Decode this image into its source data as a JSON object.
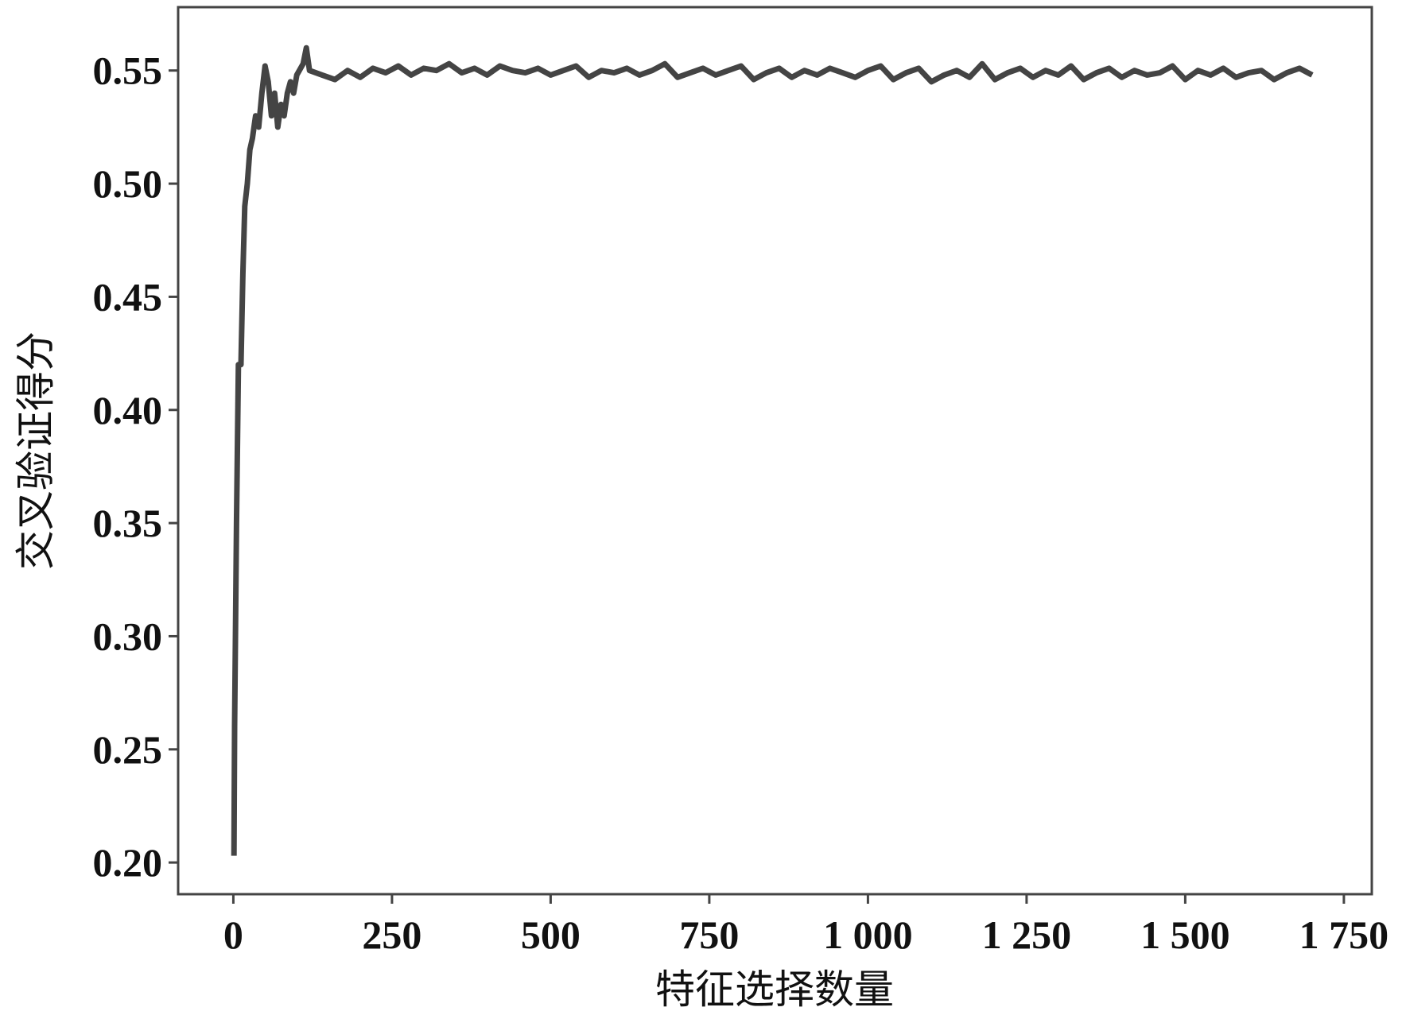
{
  "chart_data": {
    "type": "line",
    "x_label": "特征选择数量",
    "y_label": "交叉验证得分",
    "xlim": [
      -87,
      1794
    ],
    "ylim": [
      0.186,
      0.578
    ],
    "xticks": [
      0,
      250,
      500,
      750,
      {
        "value": 1000,
        "label": "1 000"
      },
      {
        "value": 1250,
        "label": "1 250"
      },
      {
        "value": 1500,
        "label": "1 500"
      },
      {
        "value": 1750,
        "label": "1 750"
      }
    ],
    "yticks": [
      {
        "value": 0.2,
        "label": "0.20"
      },
      0.25,
      {
        "value": 0.3,
        "label": "0.30"
      },
      0.35,
      {
        "value": 0.4,
        "label": "0.40"
      },
      0.45,
      {
        "value": 0.5,
        "label": "0.50"
      },
      0.55
    ],
    "grid": false,
    "series": [
      {
        "color": "#444444",
        "x": [
          1,
          2,
          5,
          8,
          12,
          15,
          18,
          22,
          26,
          30,
          35,
          40,
          45,
          50,
          55,
          60,
          65,
          70,
          75,
          80,
          85,
          90,
          95,
          100,
          110,
          115,
          120,
          130,
          140,
          160,
          180,
          200,
          220,
          240,
          260,
          280,
          300,
          320,
          340,
          360,
          380,
          400,
          420,
          440,
          460,
          480,
          500,
          520,
          540,
          560,
          580,
          600,
          620,
          640,
          660,
          680,
          700,
          720,
          740,
          760,
          780,
          800,
          820,
          840,
          860,
          880,
          900,
          920,
          940,
          960,
          980,
          1000,
          1020,
          1040,
          1060,
          1080,
          1100,
          1120,
          1140,
          1160,
          1180,
          1200,
          1220,
          1240,
          1260,
          1280,
          1300,
          1320,
          1340,
          1360,
          1380,
          1400,
          1420,
          1440,
          1460,
          1480,
          1500,
          1520,
          1540,
          1560,
          1580,
          1600,
          1620,
          1640,
          1660,
          1680,
          1700
        ],
        "values": [
          0.203,
          0.26,
          0.35,
          0.42,
          0.42,
          0.46,
          0.49,
          0.5,
          0.515,
          0.52,
          0.53,
          0.525,
          0.54,
          0.552,
          0.545,
          0.53,
          0.54,
          0.525,
          0.535,
          0.53,
          0.54,
          0.545,
          0.54,
          0.548,
          0.553,
          0.56,
          0.55,
          0.549,
          0.548,
          0.546,
          0.55,
          0.547,
          0.551,
          0.549,
          0.552,
          0.548,
          0.551,
          0.55,
          0.553,
          0.549,
          0.551,
          0.548,
          0.552,
          0.55,
          0.549,
          0.551,
          0.548,
          0.55,
          0.552,
          0.547,
          0.55,
          0.549,
          0.551,
          0.548,
          0.55,
          0.553,
          0.547,
          0.549,
          0.551,
          0.548,
          0.55,
          0.552,
          0.546,
          0.549,
          0.551,
          0.547,
          0.55,
          0.548,
          0.551,
          0.549,
          0.547,
          0.55,
          0.552,
          0.546,
          0.549,
          0.551,
          0.545,
          0.548,
          0.55,
          0.547,
          0.553,
          0.546,
          0.549,
          0.551,
          0.547,
          0.55,
          0.548,
          0.552,
          0.546,
          0.549,
          0.551,
          0.547,
          0.55,
          0.548,
          0.549,
          0.552,
          0.546,
          0.55,
          0.548,
          0.551,
          0.547,
          0.549,
          0.55,
          0.546,
          0.549,
          0.551,
          0.548
        ]
      }
    ]
  }
}
